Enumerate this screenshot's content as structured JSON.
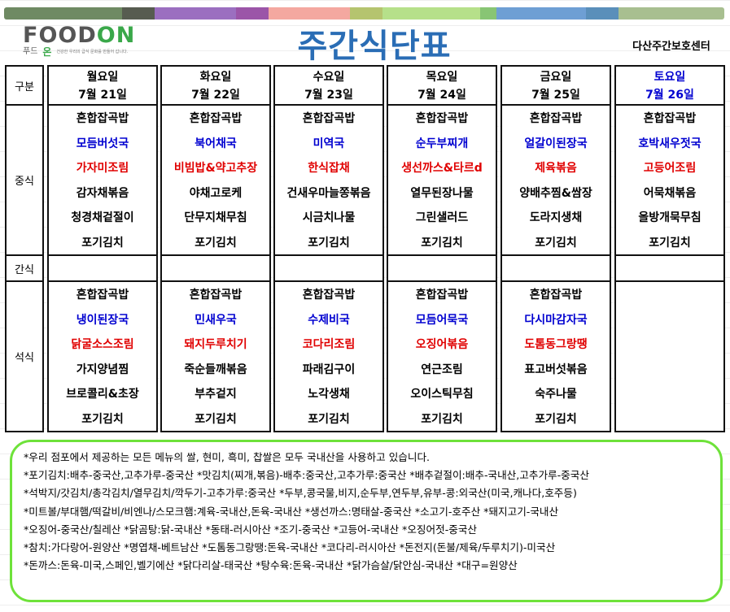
{
  "color_bar": [
    "#6f8a63",
    "#575c50",
    "#9b6fc0",
    "#9b55a8",
    "#f4a8a0",
    "#b5c46f",
    "#b6e08a",
    "#88c574",
    "#6e9fd4",
    "#5a8fba",
    "#a8bf90"
  ],
  "logo": {
    "word_a": "FOOD",
    "word_b": "ON",
    "sub_a": "푸드",
    "sub_b": "온",
    "tagline": "건강한 우리의 급식 문화를 만들어 갑니다."
  },
  "title": "주간식단표",
  "center_name": "다산주간보호센터",
  "row_labels": {
    "header": "구분",
    "lunch": "중식",
    "snack": "간식",
    "dinner": "석식"
  },
  "colors": {
    "soup": "#0000d0",
    "main": "#e00000",
    "saturday": "#0000d0"
  },
  "days": [
    {
      "day": "월요일",
      "date": "7월 21일",
      "lunch": [
        "혼합잡곡밥",
        "모듬버섯국",
        "가자미조림",
        "감자채볶음",
        "청경채겉절이",
        "포기김치"
      ],
      "dinner": [
        "혼합잡곡밥",
        "냉이된장국",
        "닭굴소스조림",
        "가지양념찜",
        "브로콜리&초장",
        "포기김치"
      ]
    },
    {
      "day": "화요일",
      "date": "7월 22일",
      "lunch": [
        "혼합잡곡밥",
        "북어채국",
        "비빔밥&약고추장",
        "야채고로케",
        "단무지채무침",
        "포기김치"
      ],
      "dinner": [
        "혼합잡곡밥",
        "민새우국",
        "돼지두루치기",
        "죽순들깨볶음",
        "부추겉지",
        "포기김치"
      ]
    },
    {
      "day": "수요일",
      "date": "7월 23일",
      "lunch": [
        "혼합잡곡밥",
        "미역국",
        "한식잡채",
        "건새우마늘쫑볶음",
        "시금치나물",
        "포기김치"
      ],
      "dinner": [
        "혼합잡곡밥",
        "수제비국",
        "코다리조림",
        "파래김구이",
        "노각생채",
        "포기김치"
      ]
    },
    {
      "day": "목요일",
      "date": "7월 24일",
      "lunch": [
        "혼합잡곡밥",
        "순두부찌개",
        "생선까스&타르d",
        "열무된장나물",
        "그린샐러드",
        "포기김치"
      ],
      "dinner": [
        "혼합잡곡밥",
        "모듬어묵국",
        "오징어볶음",
        "연근조림",
        "오이스틱무침",
        "포기김치"
      ]
    },
    {
      "day": "금요일",
      "date": "7월 25일",
      "lunch": [
        "혼합잡곡밥",
        "얼갈이된장국",
        "제육볶음",
        "양배추찜&쌈장",
        "도라지생채",
        "포기김치"
      ],
      "dinner": [
        "혼합잡곡밥",
        "다시마감자국",
        "도톰동그랑땡",
        "표고버섯볶음",
        "숙주나물",
        "포기김치"
      ]
    },
    {
      "day": "토요일",
      "date": "7월 26일",
      "lunch": [
        "혼합잡곡밥",
        "호박새우젓국",
        "고등어조림",
        "어묵채볶음",
        "올방개묵무침",
        "포기김치"
      ],
      "dinner": []
    }
  ],
  "notes": [
    "*우리 점포에서 제공하는 모든 메뉴의 쌀, 현미, 흑미, 찹쌀은 모두 국내산을 사용하고 있습니다.",
    "*포기김치:배추-중국산,고추가루-중국산  *맛김치(찌개,볶음)-배추:중국산,고추가루:중국산  *배추겉절이:배추-국내산,고추가루-중국산",
    "*석박지/갓김치/총각김치/열무김치/깍두기-고추가루:중국산  *두부,콩국물,비지,순두부,연두부,유부-콩:외국산(미국,캐나다,호주등)",
    "*미트볼/부대햄/떡갈비/비엔나/스모크햄:계육-국내산,돈육-국내산  *생선까스:명태살-중국산  *소고기-호주산  *돼지고기-국내산",
    "*오징어-중국산/칠레산  *닭곰탕:닭-국내산  *동태-러시아산  *조기-중국산  *고등어-국내산  *오징어젓-중국산",
    "*참치:가다랑어-원양산  *명엽채-베트남산  *도톰동그랑땡:돈육-국내산  *코다리-러시아산  *돈전지(돈불/제육/두루치기)-미국산",
    "*돈까스:돈육-미국,스페인,벨기에산  *닭다리살-태국산  *탕수육:돈육-국내산  *닭가슴살/닭안심-국내산  *대구=원양산"
  ]
}
